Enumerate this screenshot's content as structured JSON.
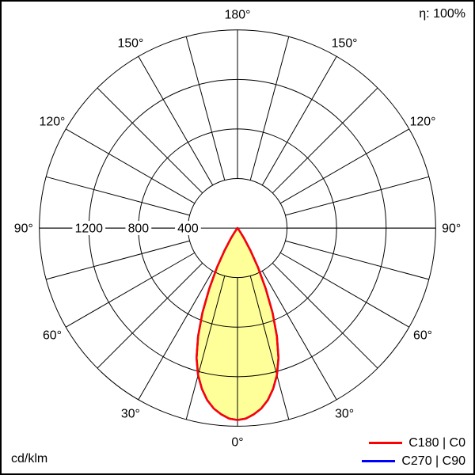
{
  "chart_data": {
    "type": "polar",
    "subtype": "photometric-intensity-distribution",
    "title": "",
    "unit": "cd/klm",
    "efficiency": "η: 100%",
    "max_value": 1600,
    "rings": [
      400,
      800,
      1200,
      1600
    ],
    "ring_labels": [
      "400",
      "800",
      "1200"
    ],
    "spoke_step_deg": 15,
    "angle_labels_deg": [
      0,
      30,
      60,
      90,
      120,
      150,
      180
    ],
    "beam_fill_color": "#ffff99",
    "grid_color": "#000000",
    "series": [
      {
        "name": "C180 | C0",
        "color": "#ff0000",
        "symmetric": true,
        "gamma_deg": [
          0,
          2.5,
          5,
          7.5,
          10,
          12.5,
          15,
          17.5,
          20,
          22.5,
          25,
          27.5,
          30,
          32.5,
          35,
          37.5,
          40
        ],
        "values_cd_per_klm": [
          1550,
          1540,
          1510,
          1470,
          1410,
          1330,
          1230,
          1100,
          930,
          740,
          540,
          360,
          210,
          100,
          40,
          10,
          0
        ]
      },
      {
        "name": "C270 | C90",
        "color": "#0000ff",
        "symmetric": true,
        "gamma_deg": [
          0,
          2.5,
          5,
          7.5,
          10,
          12.5,
          15,
          17.5,
          20,
          22.5,
          25,
          27.5,
          30,
          32.5,
          35,
          37.5,
          40
        ],
        "values_cd_per_klm": [
          1550,
          1540,
          1510,
          1470,
          1410,
          1330,
          1230,
          1100,
          930,
          740,
          540,
          360,
          210,
          100,
          40,
          10,
          0
        ]
      }
    ]
  }
}
